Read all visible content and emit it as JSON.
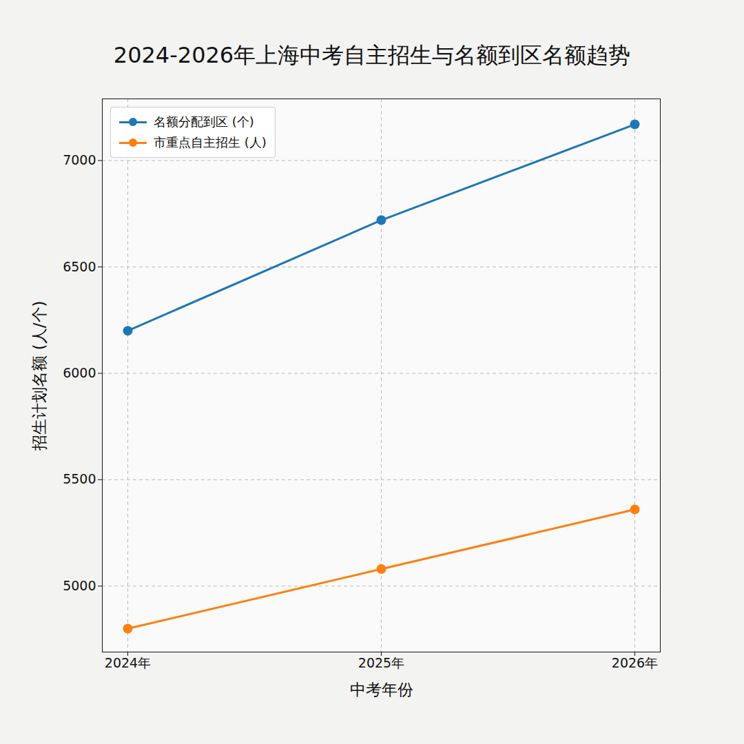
{
  "chart_data": {
    "type": "line",
    "title": "2024-2026年上海中考自主招生与名额到区名额趋势",
    "x_label": "中考年份",
    "y_label": "招生计划名额 (人/个)",
    "categories": [
      "2024年",
      "2025年",
      "2026年"
    ],
    "series": [
      {
        "name": "名额分配到区 (个)",
        "color": "#1f77b4",
        "marker": "circle",
        "values": [
          6200,
          6720,
          7170
        ]
      },
      {
        "name": "市重点自主招生 (人)",
        "color": "#ff7f0e",
        "marker": "circle",
        "values": [
          4800,
          5080,
          5360
        ]
      }
    ],
    "ylim": [
      4690,
      7290
    ],
    "yticks": [
      5000,
      5500,
      6000,
      6500,
      7000
    ],
    "grid": true,
    "legend": "upper left"
  }
}
